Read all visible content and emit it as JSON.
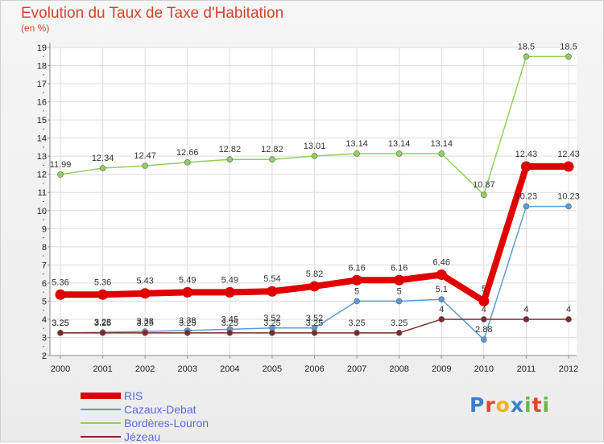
{
  "title": "Evolution du Taux de Taxe d'Habitation",
  "subtitle": "(en %)",
  "logo": {
    "letters": [
      {
        "ch": "P",
        "color": "#3a7fd0"
      },
      {
        "ch": "r",
        "color": "#e2462a"
      },
      {
        "ch": "o",
        "color": "#f0b21c"
      },
      {
        "ch": "x",
        "color": "#3a7fd0"
      },
      {
        "ch": "i",
        "color": "#6bb843"
      },
      {
        "ch": "t",
        "color": "#e2462a"
      },
      {
        "ch": "i",
        "color": "#6bb843"
      }
    ]
  },
  "chart_data": {
    "type": "line",
    "title": "Evolution du Taux de Taxe d'Habitation",
    "ylabel": "(en %)",
    "xlabel": "",
    "ylim": [
      2,
      19
    ],
    "yticks": [
      2,
      3,
      4,
      5,
      6,
      7,
      8,
      9,
      10,
      11,
      12,
      13,
      14,
      15,
      16,
      17,
      18,
      19
    ],
    "x": [
      "2000",
      "2001",
      "2002",
      "2003",
      "2004",
      "2005",
      "2006",
      "2007",
      "2008",
      "2009",
      "2010",
      "2011",
      "2012"
    ],
    "grid": true,
    "legend_position": "bottom-left",
    "series": [
      {
        "name": "RIS",
        "color": "#e00000",
        "width": 8,
        "values": [
          5.36,
          5.36,
          5.43,
          5.49,
          5.49,
          5.54,
          5.82,
          6.16,
          6.16,
          6.46,
          5,
          12.43,
          12.43
        ],
        "labels": [
          "5.36",
          "5.36",
          "5.43",
          "5.49",
          "5.49",
          "5.54",
          "5.82",
          "6.16",
          "6.16",
          "6.46",
          "5",
          "12.43",
          "12.43"
        ]
      },
      {
        "name": "Cazaux-Debat",
        "color": "#5b9bd5",
        "width": 1.5,
        "values": [
          3.25,
          3.28,
          3.33,
          3.38,
          3.45,
          3.52,
          3.52,
          5,
          5,
          5.1,
          2.88,
          10.23,
          10.23
        ],
        "labels": [
          "3.25",
          "3.28",
          "3.33",
          "3.38",
          "3.45",
          "3.52",
          "3.52",
          "5",
          "5",
          "5.1",
          "2.88",
          "10.23",
          "10.23"
        ]
      },
      {
        "name": "Bordères-Louron",
        "color": "#8fd05a",
        "width": 1.5,
        "values": [
          11.99,
          12.34,
          12.47,
          12.66,
          12.82,
          12.82,
          13.01,
          13.14,
          13.14,
          13.14,
          10.87,
          18.5,
          18.5
        ],
        "labels": [
          "11.99",
          "12.34",
          "12.47",
          "12.66",
          "12.82",
          "12.82",
          "13.01",
          "13.14",
          "13.14",
          "13.14",
          "10.87",
          "18.5",
          "18.5"
        ]
      },
      {
        "name": "Jézeau",
        "color": "#7a2a2a",
        "width": 1.5,
        "values": [
          3.25,
          3.25,
          3.25,
          3.25,
          3.25,
          3.25,
          3.25,
          3.25,
          3.25,
          4,
          4,
          4,
          4
        ],
        "labels": [
          "3.25",
          "3.25",
          "3.25",
          "3.25",
          "3.25",
          "3.25",
          "3.25",
          "3.25",
          "3.25",
          "4",
          "4",
          "4",
          "4"
        ]
      }
    ]
  }
}
